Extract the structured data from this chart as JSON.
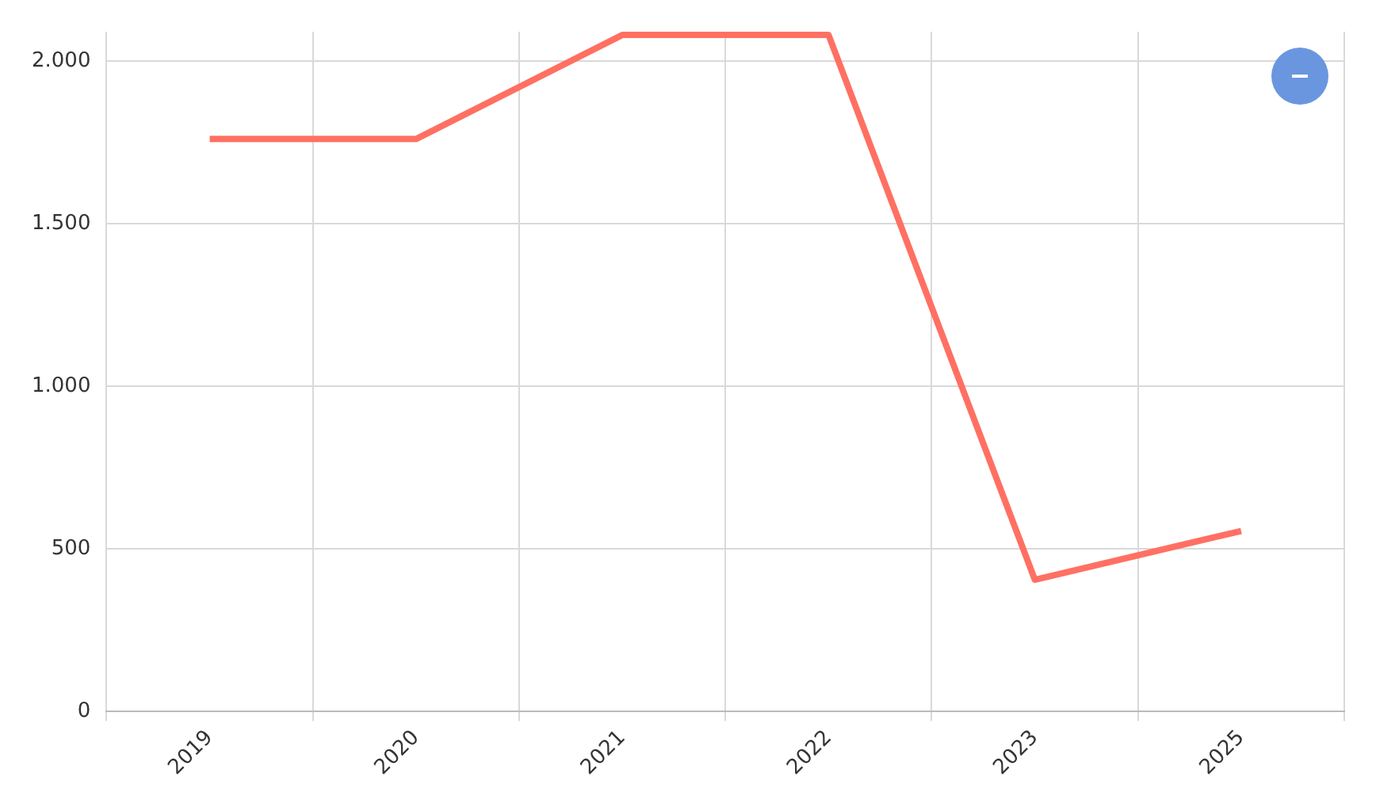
{
  "chart_data": {
    "type": "line",
    "categories": [
      "2019",
      "2020",
      "2021",
      "2022",
      "2023",
      "2025"
    ],
    "series": [
      {
        "color": "#ff7063",
        "values": [
          1760,
          1760,
          2080,
          2080,
          405,
          555
        ]
      }
    ],
    "ylim": [
      0,
      2090
    ],
    "yticks": [
      {
        "value": 0,
        "label": "0"
      },
      {
        "value": 500,
        "label": "500"
      },
      {
        "value": 1000,
        "label": "1.000"
      },
      {
        "value": 1500,
        "label": "1.500"
      },
      {
        "value": 2000,
        "label": "2.000"
      }
    ],
    "grid": true,
    "legend": false,
    "marker": "none",
    "line_style": "solid"
  }
}
